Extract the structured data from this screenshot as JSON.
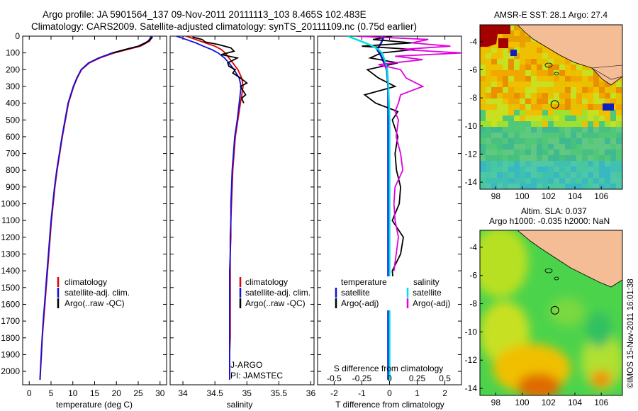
{
  "header": {
    "title_line1": "Argo profile: JA 5901564_137 09-Nov-2011 20111113_103 8.465S 102.483E",
    "title_line2": "Climatology: CARS2009. Satellite-adjusted climatology: synTS_20111109.nc (0.75d earlier)"
  },
  "colors": {
    "climatology": "#e00000",
    "satellite": "#1010e0",
    "argo": "#000000",
    "sat_salinity": "#00e0e0",
    "argo_salinity": "#e000e0"
  },
  "chart_data": [
    {
      "type": "line",
      "name": "temperature",
      "xlabel": "temperature (deg C)",
      "ylabel": "",
      "xlim": [
        -1.5,
        31.5
      ],
      "ylim": [
        2080,
        0
      ],
      "xticks": [
        "0",
        "5",
        "10",
        "15",
        "20",
        "25",
        "30"
      ],
      "yticks": [
        "0",
        "100",
        "200",
        "300",
        "400",
        "500",
        "600",
        "700",
        "800",
        "900",
        "1000",
        "1100",
        "1200",
        "1300",
        "1400",
        "1500",
        "1600",
        "1700",
        "1800",
        "1900",
        "2000"
      ],
      "legend": [
        "climatology",
        "satellite-adj. clim.",
        "Argo(..raw -QC)"
      ],
      "series": [
        {
          "name": "climatology",
          "color": "#e00000",
          "depth": [
            0,
            30,
            60,
            80,
            100,
            130,
            160,
            200,
            250,
            300,
            400,
            500,
            600,
            700,
            800,
            900,
            1000,
            1100,
            1200,
            1300,
            1400,
            1500,
            1600,
            1700,
            1800,
            1900,
            2000,
            2050
          ],
          "values": [
            28.2,
            27.6,
            25.5,
            22.5,
            19.5,
            16.2,
            13.8,
            12.0,
            11.0,
            10.2,
            9.0,
            8.3,
            7.6,
            7.0,
            6.4,
            5.9,
            5.5,
            5.1,
            4.8,
            4.5,
            4.2,
            3.9,
            3.6,
            3.3,
            3.0,
            2.8,
            2.6,
            2.5
          ]
        },
        {
          "name": "satellite-adj. clim.",
          "color": "#1010e0",
          "depth": [
            0,
            30,
            60,
            80,
            100,
            130,
            160,
            200,
            250,
            300,
            400,
            500,
            600,
            700,
            800,
            900,
            1000,
            1100,
            1200,
            1300,
            1400,
            1500,
            1600,
            1700,
            1800,
            1900,
            2000,
            2050
          ],
          "values": [
            28.0,
            27.3,
            25.0,
            22.0,
            19.0,
            15.9,
            13.6,
            11.9,
            10.9,
            10.1,
            8.9,
            8.2,
            7.5,
            6.9,
            6.3,
            5.8,
            5.4,
            5.0,
            4.7,
            4.4,
            4.1,
            3.8,
            3.5,
            3.2,
            2.95,
            2.75,
            2.55,
            2.45
          ]
        },
        {
          "name": "Argo(..raw -QC)",
          "color": "#000000",
          "depth": [
            5,
            10,
            20,
            30,
            45,
            60,
            80,
            100
          ],
          "values": [
            28.3,
            28.1,
            27.8,
            27.2,
            26.5,
            25.0,
            22.0,
            19.2
          ]
        }
      ]
    },
    {
      "type": "line",
      "name": "salinity",
      "xlabel": "salinity",
      "xlim": [
        33.8,
        36.05
      ],
      "ylim": [
        2080,
        0
      ],
      "xticks": [
        "34",
        "34.5",
        "35",
        "35.5",
        "36"
      ],
      "legend": [
        "climatology",
        "satellite-adj. clim.",
        "Argo(..raw -QC)"
      ],
      "annotations": [
        "J-ARGO",
        "PI: JAMSTEC"
      ],
      "series": [
        {
          "name": "climatology",
          "color": "#e00000",
          "depth": [
            0,
            20,
            40,
            60,
            80,
            100,
            130,
            160,
            200,
            250,
            300,
            400,
            500,
            600,
            700,
            800,
            900,
            1000,
            1100,
            1200,
            1300,
            1400,
            1500,
            1600,
            1700,
            1800,
            1900,
            2000,
            2050
          ],
          "values": [
            34.05,
            34.2,
            34.35,
            34.5,
            34.6,
            34.66,
            34.72,
            34.78,
            34.86,
            34.92,
            34.94,
            34.9,
            34.86,
            34.82,
            34.8,
            34.78,
            34.77,
            34.76,
            34.75,
            34.75,
            34.74,
            34.74,
            34.74,
            34.74,
            34.74,
            34.74,
            34.73,
            34.73,
            34.73
          ]
        },
        {
          "name": "satellite-adj. clim.",
          "color": "#1010e0",
          "depth": [
            0,
            20,
            40,
            60,
            80,
            100,
            130,
            160,
            200,
            250,
            300,
            400,
            500,
            600,
            700,
            800,
            900,
            1000,
            1100,
            1200,
            1300,
            1400,
            1500,
            1600,
            1700,
            1800,
            1900,
            2000,
            2050
          ],
          "values": [
            33.9,
            34.05,
            34.2,
            34.32,
            34.45,
            34.55,
            34.65,
            34.72,
            34.8,
            34.88,
            34.91,
            34.88,
            34.85,
            34.81,
            34.79,
            34.77,
            34.76,
            34.75,
            34.75,
            34.74,
            34.74,
            34.73,
            34.73,
            34.73,
            34.73,
            34.73,
            34.73,
            34.73,
            34.73
          ]
        },
        {
          "name": "Argo(..raw -QC)",
          "color": "#000000",
          "depth": [
            5,
            20,
            35,
            50,
            70,
            90,
            110,
            130,
            160,
            180,
            200,
            220,
            250,
            280,
            300,
            320,
            350,
            370,
            400
          ],
          "values": [
            34.15,
            34.3,
            34.35,
            34.55,
            34.75,
            34.8,
            34.6,
            34.85,
            34.7,
            34.72,
            34.82,
            34.78,
            34.9,
            35.0,
            34.9,
            34.93,
            34.98,
            34.92,
            34.95
          ]
        }
      ]
    },
    {
      "type": "line",
      "name": "difference",
      "xlabel_top": "S difference from climatology",
      "xticks_top": [
        "-0.5",
        "-0.25",
        "0",
        "0.25",
        "0.5"
      ],
      "xlabel": "T difference from climatology",
      "xticks": [
        "-2",
        "-1",
        "0",
        "1",
        "2"
      ],
      "xlim": [
        -2.6,
        2.6
      ],
      "ylim": [
        2080,
        0
      ],
      "legend_temperature": {
        "title": "temperature",
        "items": [
          "satellite",
          "Argo(-adj)"
        ]
      },
      "legend_salinity": {
        "title": "salinity",
        "items": [
          "satellite",
          "Argo(-adj)"
        ]
      },
      "series": [
        {
          "name": "T satellite",
          "color": "#1010e0",
          "depth": [
            0,
            40,
            80,
            120,
            160,
            200,
            300,
            500,
            800,
            1200,
            1600,
            2050
          ],
          "values": [
            -0.2,
            -0.3,
            -0.45,
            -0.3,
            -0.2,
            -0.1,
            -0.05,
            -0.05,
            -0.05,
            -0.05,
            -0.05,
            -0.05
          ]
        },
        {
          "name": "T Argo(-adj)",
          "color": "#000000",
          "depth": [
            0,
            20,
            40,
            60,
            80,
            100,
            130,
            160,
            200,
            250,
            300,
            350,
            400,
            450,
            500,
            600,
            700,
            800,
            900,
            1000,
            1100,
            1200,
            1300,
            1400,
            1500
          ],
          "values": [
            0.1,
            -0.6,
            0.8,
            -1.0,
            0.9,
            -0.3,
            -0.7,
            0.3,
            -0.8,
            -0.4,
            0.2,
            -0.9,
            -0.5,
            0.3,
            0.1,
            0.3,
            0.2,
            0.25,
            0.4,
            0.35,
            0.1,
            0.5,
            0.4,
            0.1,
            0.15
          ]
        },
        {
          "name": "S satellite",
          "color": "#00e0e0",
          "depth": [
            0,
            20,
            40,
            60,
            80,
            100,
            150,
            200,
            300,
            500,
            800,
            1200,
            1600,
            2050
          ],
          "values": [
            -0.38,
            -0.3,
            -0.22,
            -0.15,
            -0.1,
            -0.07,
            -0.04,
            -0.02,
            -0.01,
            0,
            0,
            0,
            0,
            0
          ]
        },
        {
          "name": "S Argo(-adj)",
          "color": "#e000e0",
          "depth": [
            0,
            20,
            40,
            60,
            80,
            100,
            120,
            140,
            170,
            200,
            250,
            300,
            350,
            400,
            450,
            500,
            600,
            700,
            800,
            900,
            1000,
            1100,
            1200,
            1300,
            1400
          ],
          "values": [
            -0.3,
            0.35,
            0.2,
            0.55,
            0.1,
            0.65,
            0.05,
            0.3,
            -0.1,
            0.1,
            0.15,
            0.3,
            0.1,
            0.08,
            0.05,
            0.08,
            0.06,
            0.1,
            0.12,
            0.05,
            0.04,
            0.05,
            0.08,
            0.06,
            0.04
          ]
        }
      ]
    },
    {
      "type": "heatmap",
      "name": "sst_map",
      "title": "AMSR-E SST: 28.1  Argo: 27.4",
      "xticks": [
        "98",
        "100",
        "102",
        "104",
        "106"
      ],
      "yticks": [
        "-4",
        "-6",
        "-8",
        "-10",
        "-12",
        "-14"
      ],
      "xlim": [
        96.8,
        107.6
      ],
      "ylim": [
        -14.5,
        -2.8
      ],
      "argo_position": [
        102.48,
        -8.47
      ]
    },
    {
      "type": "heatmap",
      "name": "sla_map",
      "title_line1": "Altim. SLA: 0.037",
      "title_line2": "Argo h1000: -0.035 h2000: NaN",
      "xticks": [
        "98",
        "100",
        "102",
        "104",
        "106"
      ],
      "yticks": [
        "-4",
        "-6",
        "-8",
        "-10",
        "-12",
        "-14"
      ],
      "xlim": [
        96.8,
        107.6
      ],
      "ylim": [
        -14.5,
        -2.8
      ],
      "argo_position": [
        102.48,
        -8.47
      ]
    }
  ],
  "footer": {
    "credit": "©IMOS 15-Nov-2011 16:01:38"
  }
}
